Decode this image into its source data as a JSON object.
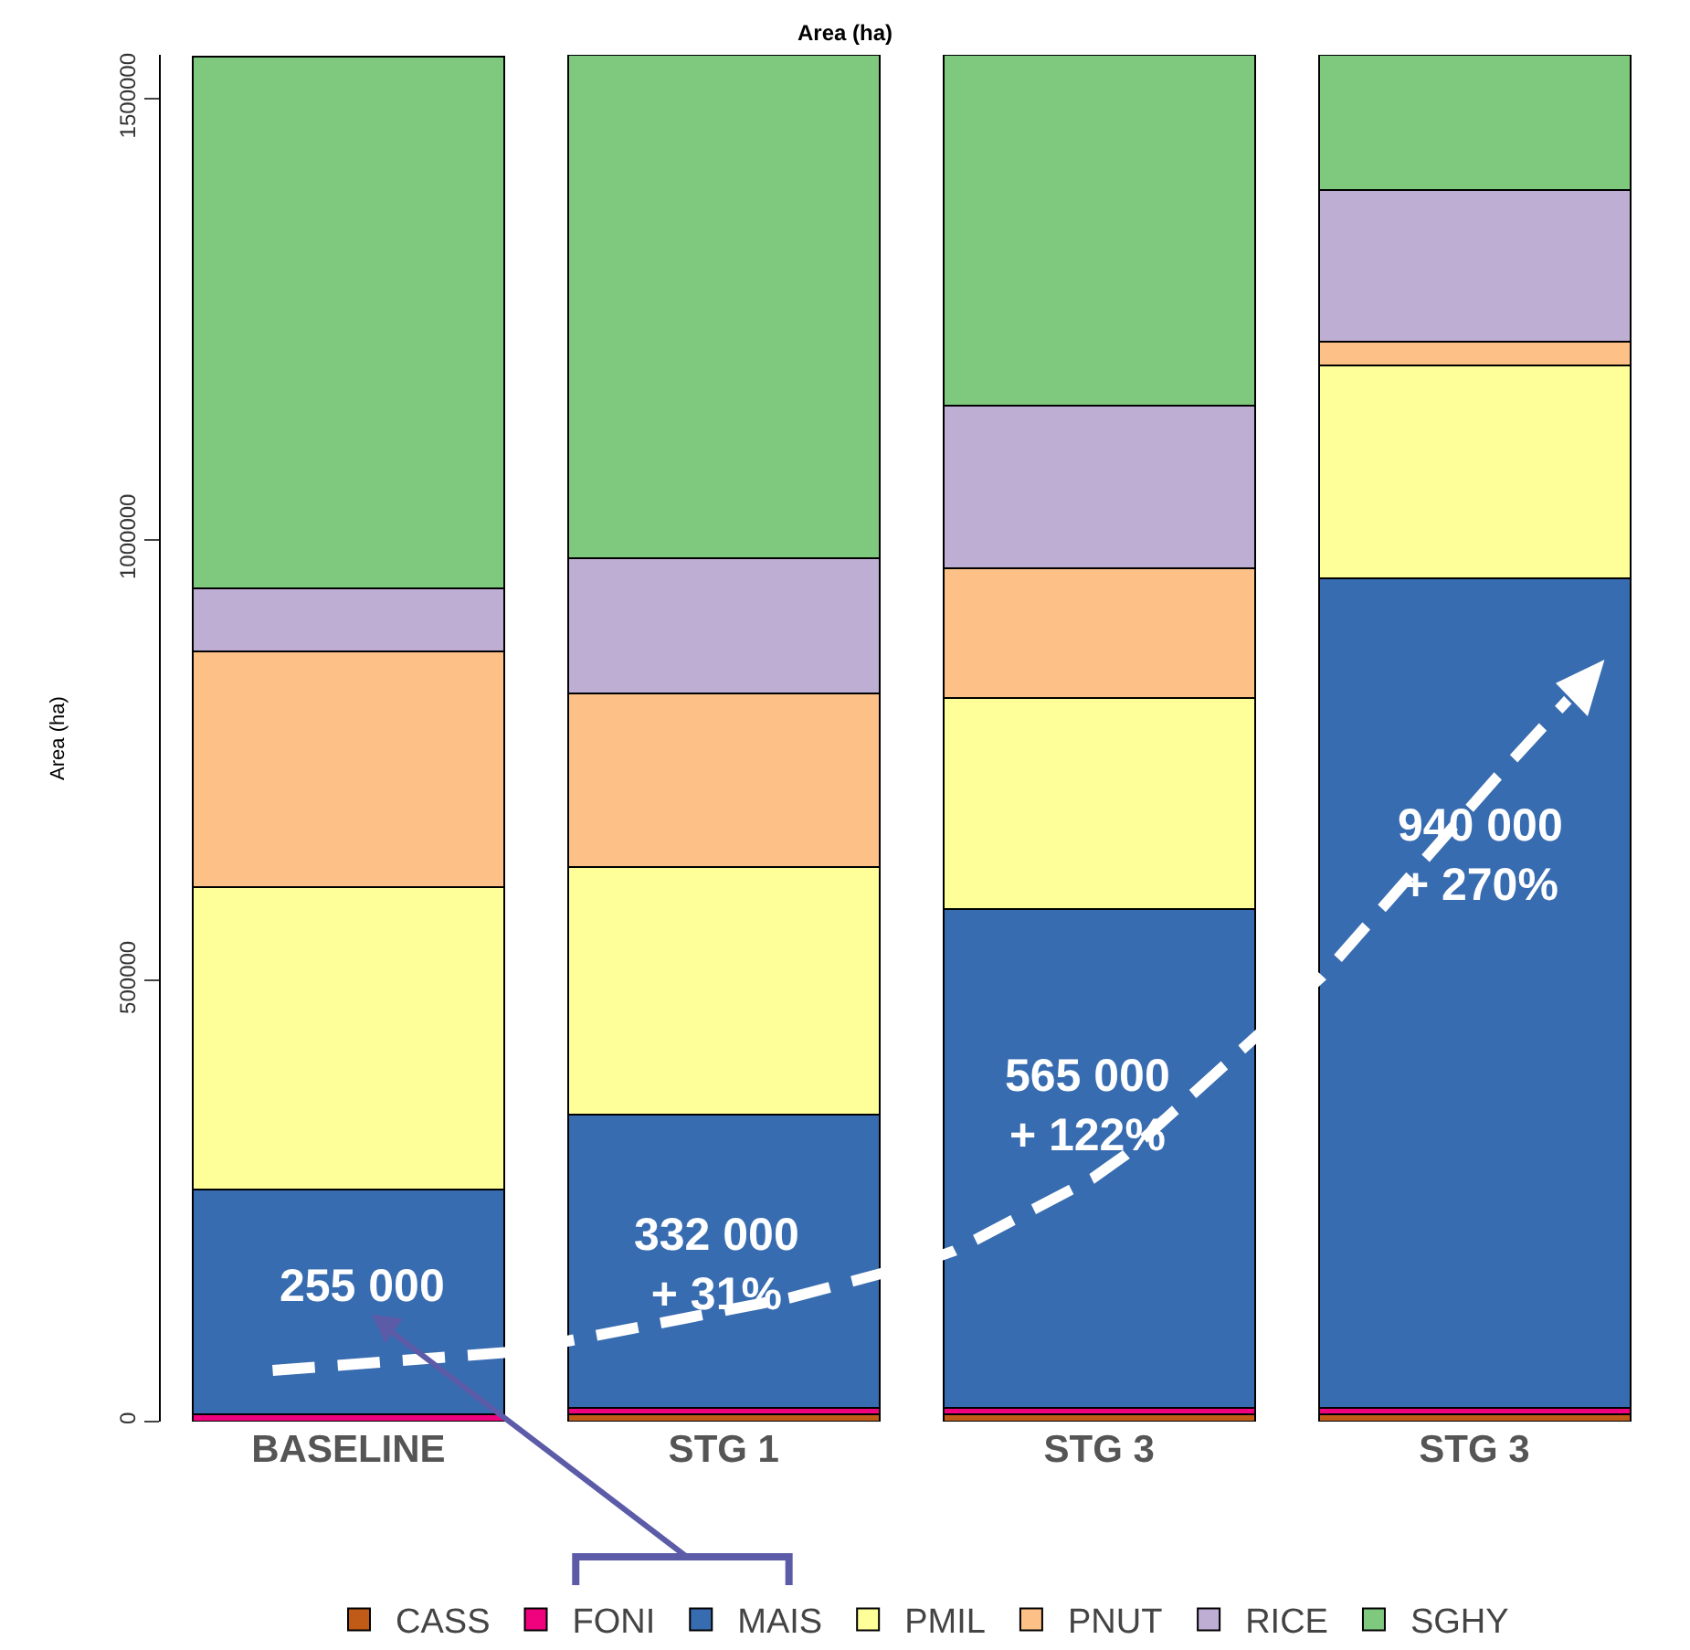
{
  "chart_data": {
    "type": "bar",
    "stacked": true,
    "title": "Area (ha)",
    "ylabel": "Area (ha)",
    "categories": [
      "BASELINE",
      "STG 1",
      "STG 3",
      "STG 3"
    ],
    "series": [
      {
        "name": "CASS",
        "color": "#bf5b17",
        "values": [
          null,
          8000,
          8000,
          8000
        ]
      },
      {
        "name": "FONI",
        "color": "#f0027f",
        "values": [
          8000,
          8000,
          8000,
          8000
        ]
      },
      {
        "name": "MAIS",
        "color": "#386cb0",
        "values": [
          255000,
          332000,
          565000,
          940000
        ]
      },
      {
        "name": "PMIL",
        "color": "#ffff99",
        "values": [
          343000,
          281000,
          240000,
          242000
        ]
      },
      {
        "name": "PNUT",
        "color": "#fdc086",
        "values": [
          267000,
          197000,
          147000,
          27000
        ]
      },
      {
        "name": "RICE",
        "color": "#beaed4",
        "values": [
          72000,
          153000,
          184000,
          172000
        ]
      },
      {
        "name": "SGHY",
        "color": "#7fc97f",
        "values": [
          603000,
          571000,
          398000,
          153000
        ]
      }
    ],
    "ylim": [
      0,
      1550000
    ],
    "yticks": [
      0,
      500000,
      1000000,
      1500000
    ],
    "grid": false,
    "legend": "bottom",
    "annotations": [
      "255 000",
      "332 000\n+ 31%",
      "565 000\n+ 122%",
      "940 000\n+ 270%"
    ]
  }
}
